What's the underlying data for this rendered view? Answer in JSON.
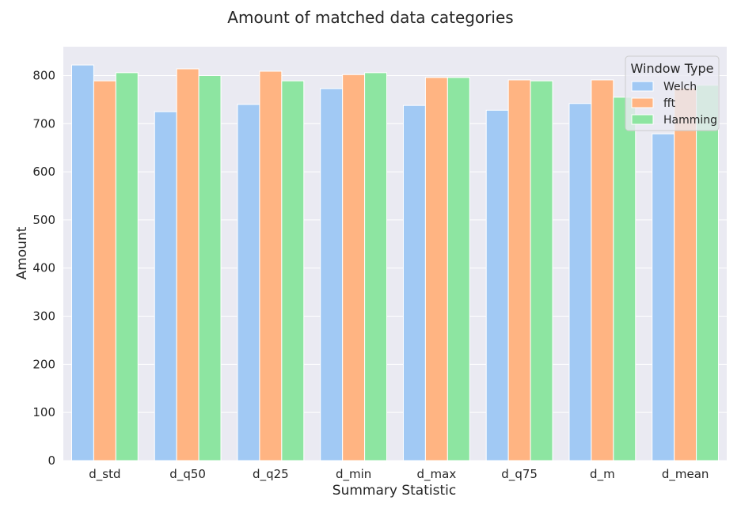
{
  "chart_data": {
    "type": "bar",
    "title": "Amount of matched data categories",
    "xlabel": "Summary Statistic",
    "ylabel": "Amount",
    "categories": [
      "d_std",
      "d_q50",
      "d_q25",
      "d_min",
      "d_max",
      "d_q75",
      "d_m",
      "d_mean"
    ],
    "series": [
      {
        "name": "Welch",
        "color": "#a1c9f4",
        "values": [
          822,
          725,
          740,
          773,
          738,
          728,
          742,
          679
        ]
      },
      {
        "name": "fft",
        "color": "#ffb482",
        "values": [
          789,
          814,
          809,
          802,
          796,
          791,
          791,
          774
        ]
      },
      {
        "name": "Hamming",
        "color": "#8de5a1",
        "values": [
          806,
          800,
          789,
          806,
          796,
          789,
          755,
          780
        ]
      }
    ],
    "ylim": [
      0,
      860
    ],
    "yticks": [
      0,
      100,
      200,
      300,
      400,
      500,
      600,
      700,
      800
    ],
    "grid": true,
    "legend": {
      "title": "Window Type",
      "position": "top-right"
    },
    "style": {
      "background": "#eaeaf2",
      "grid_color": "#ffffff"
    }
  }
}
